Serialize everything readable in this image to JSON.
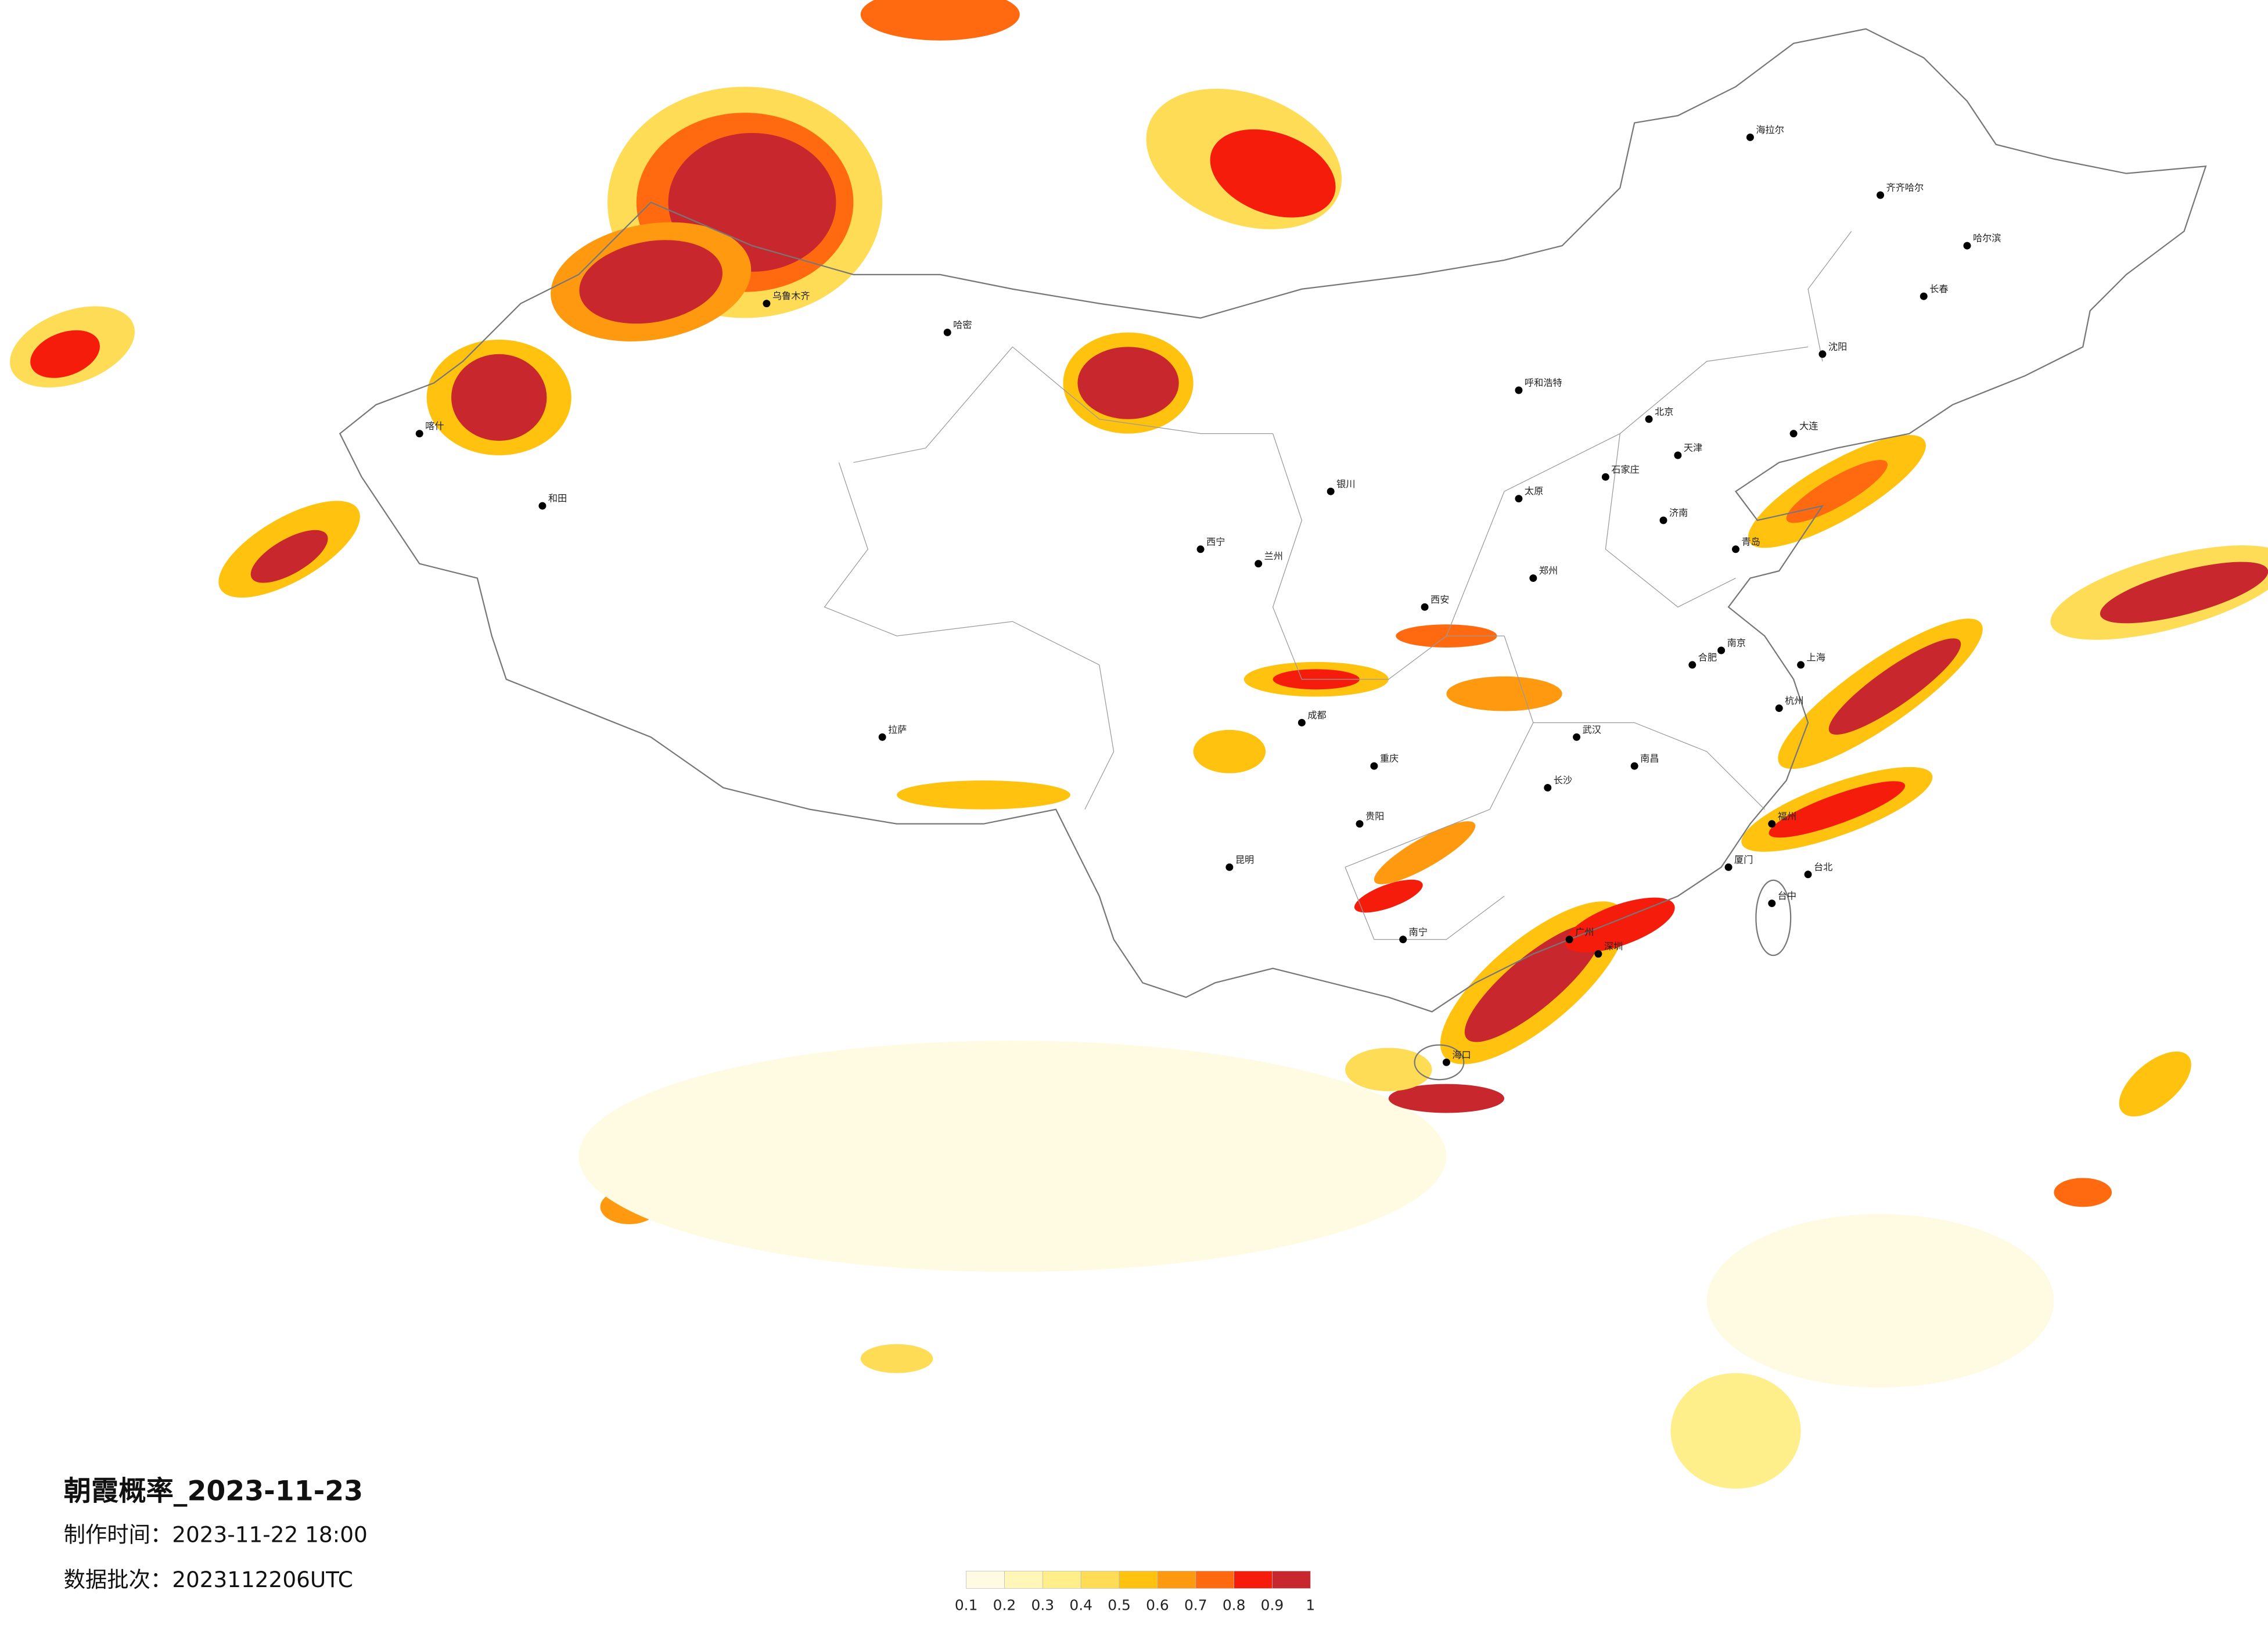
{
  "header": {
    "title": "朝霞概率_2023-11-23",
    "made_time": "制作时间：2023-11-22 18:00",
    "batch": "数据批次：2023112206UTC"
  },
  "legend": {
    "ticks": [
      0.1,
      0.2,
      0.3,
      0.4,
      0.5,
      0.6,
      0.7,
      0.8,
      0.9,
      1
    ],
    "colors": [
      "#fffbe3",
      "#fff6b8",
      "#ffef8a",
      "#ffdc55",
      "#ffc20e",
      "#ff9a10",
      "#ff6a10",
      "#f51c0c",
      "#c8282d"
    ]
  },
  "cities": [
    "北京",
    "天津",
    "上海",
    "广州",
    "武汉",
    "成都",
    "重庆",
    "西安",
    "兰州",
    "乌鲁木齐",
    "拉萨",
    "哈尔滨",
    "长春",
    "沈阳",
    "呼和浩特",
    "银川",
    "哈密",
    "喀什",
    "和田",
    "昆明",
    "贵阳",
    "南宁",
    "福州",
    "南昌",
    "长沙",
    "郑州",
    "济南",
    "南京",
    "杭州",
    "合肥",
    "太原",
    "石家庄",
    "西宁",
    "海口",
    "台北",
    "台中",
    "海拉尔",
    "齐齐哈尔",
    "大连",
    "青岛",
    "厦门",
    "深圳"
  ]
}
